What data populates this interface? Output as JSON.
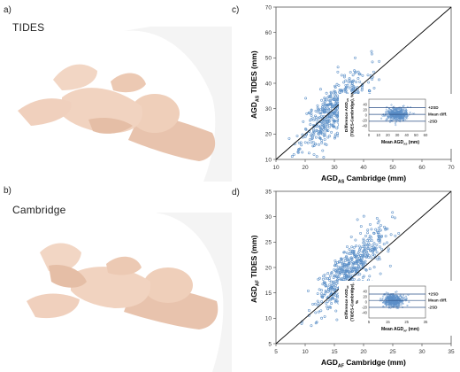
{
  "panels": {
    "a": {
      "label": "a)",
      "method": "TIDES"
    },
    "b": {
      "label": "b)",
      "method": "Cambridge"
    },
    "c": {
      "label": "c)"
    },
    "d": {
      "label": "d)"
    }
  },
  "chart_data": [
    {
      "type": "scatter",
      "panel": "c",
      "xlabel_main": "AGD",
      "xlabel_sub": "AS",
      "xlabel_rest": " Cambridge (mm)",
      "ylabel_main": "AGD",
      "ylabel_sub": "AS",
      "ylabel_rest": " TIDES (mm)",
      "xlim": [
        10,
        70
      ],
      "ylim": [
        10,
        70
      ],
      "xticks": [
        10,
        20,
        30,
        40,
        50,
        60,
        70
      ],
      "yticks": [
        10,
        20,
        30,
        40,
        50,
        60,
        70
      ],
      "identity_line": true,
      "point_color": "#5b8fc7",
      "cloud": {
        "x_mean": 30,
        "x_sd": 5.5,
        "slope": 1.02,
        "intercept": -1,
        "resid_sd": 5,
        "n": 520
      },
      "inset": {
        "type": "bland-altman",
        "xlabel": "Mean AGD",
        "xlabel_sub": "AS",
        "xlabel_rest": " (mm)",
        "ylabel_lines": [
          "Difference AGD",
          "(TIDES-Cambridge), %"
        ],
        "ylabel_sub": "AS",
        "xlim": [
          0,
          60
        ],
        "ylim": [
          -60,
          60
        ],
        "xticks": [
          0,
          10,
          20,
          30,
          40,
          50,
          60
        ],
        "yticks": [
          -40,
          -20,
          0,
          20,
          40
        ],
        "mean_diff": 3,
        "plus_2sd": 28,
        "minus_2sd": -23,
        "line_labels": [
          "+2SD",
          "Mean diff.",
          "-2SD"
        ],
        "cloud": {
          "x_mean": 30,
          "x_sd": 5.5,
          "y_mean": 3,
          "y_sd": 12,
          "n": 420
        }
      }
    },
    {
      "type": "scatter",
      "panel": "d",
      "xlabel_main": "AGD",
      "xlabel_sub": "AF",
      "xlabel_rest": " Cambridge (mm)",
      "ylabel_main": "AGD",
      "ylabel_sub": "AF",
      "ylabel_rest": " TIDES (mm)",
      "xlim": [
        5,
        35
      ],
      "ylim": [
        5,
        35
      ],
      "xticks": [
        5,
        10,
        15,
        20,
        25,
        30,
        35
      ],
      "yticks": [
        5,
        10,
        15,
        20,
        25,
        30,
        35
      ],
      "identity_line": true,
      "point_color": "#5b8fc7",
      "cloud": {
        "x_mean": 17.5,
        "x_sd": 3.0,
        "slope": 1.05,
        "intercept": 1,
        "resid_sd": 2.5,
        "n": 520
      },
      "inset": {
        "type": "bland-altman",
        "xlabel": "Mean AGD",
        "xlabel_sub": "AF",
        "xlabel_rest": " (mm)",
        "ylabel_lines": [
          "Difference AGD",
          "(TIDES-Cambridge),",
          "%"
        ],
        "ylabel_sub": "AF",
        "xlim": [
          5,
          35
        ],
        "ylim": [
          -60,
          60
        ],
        "xticks": [
          5,
          15,
          25,
          35
        ],
        "yticks": [
          -40,
          -20,
          0,
          20,
          40
        ],
        "mean_diff": 6,
        "plus_2sd": 30,
        "minus_2sd": -20,
        "line_labels": [
          "+2SD",
          "Mean diff.",
          "-2SD"
        ],
        "cloud": {
          "x_mean": 18,
          "x_sd": 2.8,
          "y_mean": 6,
          "y_sd": 12,
          "n": 420
        }
      }
    }
  ]
}
